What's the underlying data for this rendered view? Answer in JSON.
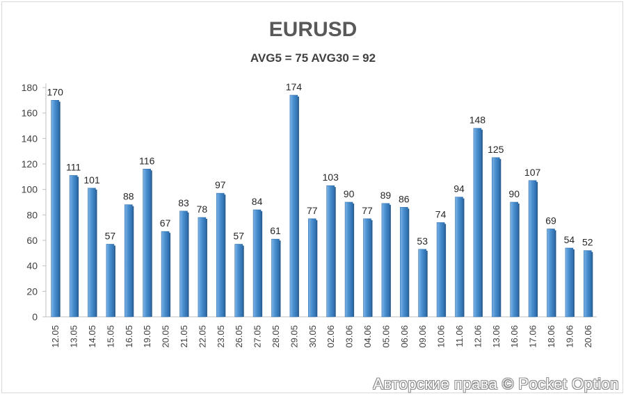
{
  "chart_data": {
    "type": "bar",
    "title": "EURUSD",
    "subtitle": "AVG5 = 75 AVG30 = 92",
    "categories": [
      "12.05",
      "13.05",
      "14.05",
      "15.05",
      "16.05",
      "19.05",
      "20.05",
      "21.05",
      "22.05",
      "23.05",
      "26.05",
      "27.05",
      "28.05",
      "29.05",
      "30.05",
      "02.06",
      "03.06",
      "04.06",
      "05.06",
      "06.06",
      "09.06",
      "10.06",
      "11.06",
      "12.06",
      "13.06",
      "16.06",
      "17.06",
      "18.06",
      "19.06",
      "20.06"
    ],
    "values": [
      170,
      111,
      101,
      57,
      88,
      116,
      67,
      83,
      78,
      97,
      57,
      84,
      61,
      174,
      77,
      103,
      90,
      77,
      89,
      86,
      53,
      74,
      94,
      148,
      125,
      90,
      107,
      69,
      54,
      52
    ],
    "ylim": [
      0,
      180
    ],
    "yticks": [
      0,
      20,
      40,
      60,
      80,
      100,
      120,
      140,
      160,
      180
    ],
    "grid": false,
    "bar_color": "#4a90d0",
    "data_labels": true
  },
  "watermark": "Авторские права © Pocket Option"
}
